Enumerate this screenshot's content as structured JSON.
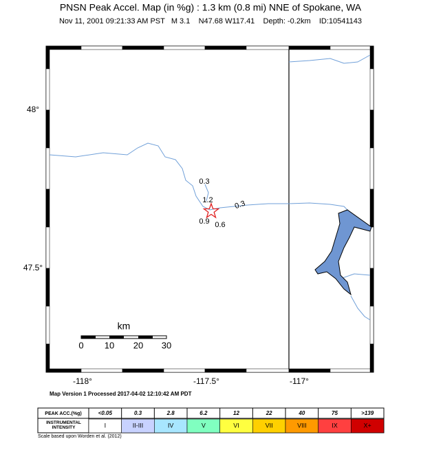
{
  "header": {
    "title": "PNSN Peak Accel. Map (in %g) : 1.3 km (0.8 mi) NNE of Spokane, WA",
    "subtitle": "Nov 11, 2001 09:21:33 AM PST   M 3.1    N47.68 W117.41    Depth: -0.2km    ID:10541143"
  },
  "map": {
    "lat_labels": [
      "48°",
      "47.5°"
    ],
    "lon_labels": [
      "-118°",
      "-117.5°",
      "-117°"
    ],
    "contour_labels": [
      "0.3",
      "1.2",
      "0.3",
      "0.9",
      "0.6"
    ]
  },
  "scale": {
    "unit": "km",
    "ticks": [
      "0",
      "10",
      "20",
      "30"
    ]
  },
  "footer": {
    "processed": "Map Version 1 Processed 2017-04-02 12:10:42 AM PDT"
  },
  "legend": {
    "row_labels": [
      "PEAK ACC.(%g)",
      "INSTRUMENTAL INTENSITY"
    ],
    "peak_acc": [
      "<0.05",
      "0.3",
      "2.8",
      "6.2",
      "12",
      "22",
      "40",
      "75",
      ">139"
    ],
    "intensity": [
      "I",
      "II-III",
      "IV",
      "V",
      "VI",
      "VII",
      "VIII",
      "IX",
      "X+"
    ],
    "credit": "Scale based upon Worden et al. (2012)"
  }
}
